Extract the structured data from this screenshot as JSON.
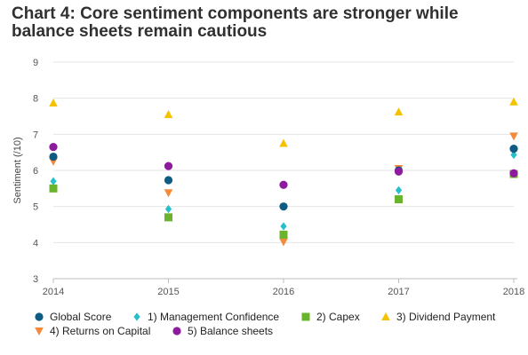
{
  "page_title": "Chart 4: Core sentiment components are stronger while balance sheets remain cautious",
  "chart_data": {
    "type": "scatter",
    "title": "Chart 4: Core sentiment components are stronger while balance sheets remain cautious",
    "xlabel": "",
    "ylabel": "Sentiment (/10)",
    "categories": [
      "2014",
      "2015",
      "2016",
      "2017",
      "2018"
    ],
    "ylim": [
      3,
      9
    ],
    "yticks": [
      3,
      4,
      5,
      6,
      7,
      8,
      9
    ],
    "grid": true,
    "legend_position": "bottom",
    "series": [
      {
        "name": "Global Score",
        "marker": "circle",
        "color": "#0e5b84",
        "values": [
          6.38,
          5.73,
          5.0,
          6.0,
          6.6
        ]
      },
      {
        "name": "1) Management Confidence",
        "marker": "diamond",
        "color": "#27bfc9",
        "values": [
          5.7,
          4.93,
          4.45,
          5.45,
          6.43
        ]
      },
      {
        "name": "2) Capex",
        "marker": "square",
        "color": "#6ab42d",
        "values": [
          5.5,
          4.7,
          4.22,
          5.2,
          5.9
        ]
      },
      {
        "name": "3) Dividend Payment",
        "marker": "triangle-up",
        "color": "#f5c200",
        "values": [
          7.87,
          7.55,
          6.75,
          7.62,
          7.9
        ]
      },
      {
        "name": "4) Returns on Capital",
        "marker": "triangle-down",
        "color": "#f58a3a",
        "values": [
          6.25,
          5.38,
          4.02,
          6.05,
          6.95
        ]
      },
      {
        "name": "5) Balance sheets",
        "marker": "circle",
        "color": "#8e1a9e",
        "values": [
          6.65,
          6.12,
          5.6,
          5.97,
          5.92
        ]
      }
    ]
  }
}
